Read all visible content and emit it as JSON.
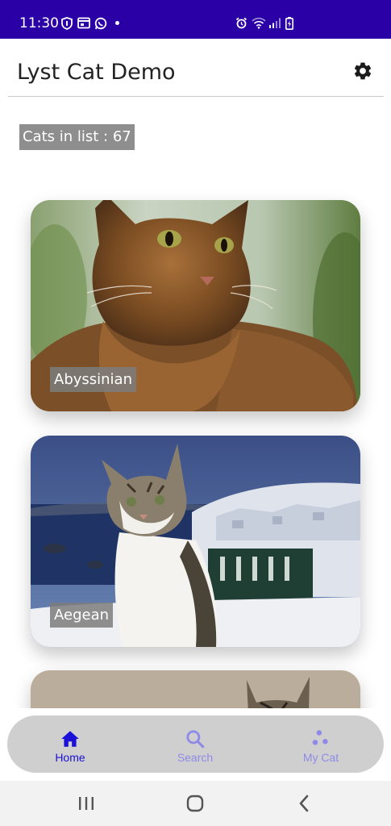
{
  "status_bar": {
    "time": "11:30"
  },
  "app_bar": {
    "title": "Lyst Cat Demo"
  },
  "count_label": "Cats in list : 67",
  "cats": [
    {
      "name": "Abyssinian"
    },
    {
      "name": "Aegean"
    },
    {
      "name": ""
    }
  ],
  "bottom_nav": {
    "items": [
      {
        "label": "Home",
        "icon": "home-icon",
        "selected": true
      },
      {
        "label": "Search",
        "icon": "search-icon",
        "selected": false
      },
      {
        "label": "My Cat",
        "icon": "paw-dots-icon",
        "selected": false
      }
    ]
  },
  "colors": {
    "status_bar": "#2A00A6",
    "nav_selected": "#1A10D8",
    "nav_unselected": "#8F8AE8",
    "nav_background": "#CFCFCF"
  }
}
